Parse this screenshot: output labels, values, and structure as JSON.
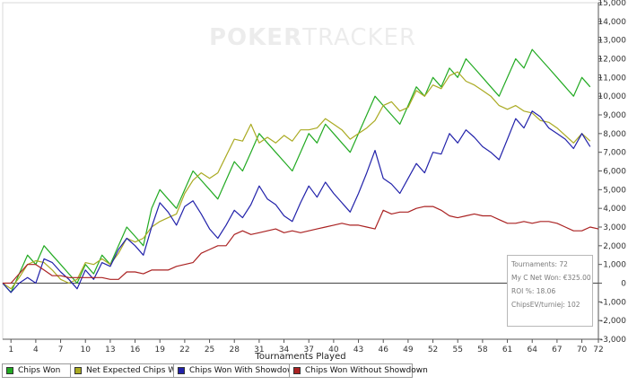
{
  "watermark": {
    "brand_bold": "POKER",
    "brand_light": "TRACKER"
  },
  "chart_data": {
    "type": "line",
    "title": "",
    "xlabel": "Tournaments Played",
    "ylabel": "",
    "xlim": [
      0,
      72
    ],
    "ylim": [
      -3000,
      15000
    ],
    "grid": false,
    "y_axis_side": "right",
    "legend_placement": "bottom",
    "xticks": [
      1,
      4,
      7,
      10,
      13,
      16,
      19,
      22,
      25,
      28,
      31,
      34,
      37,
      40,
      43,
      46,
      49,
      52,
      55,
      58,
      61,
      64,
      67,
      70,
      72
    ],
    "yticks": [
      -3000,
      -2000,
      -1000,
      0,
      1000,
      2000,
      3000,
      4000,
      5000,
      6000,
      7000,
      8000,
      9000,
      10000,
      11000,
      12000,
      13000,
      14000,
      15000
    ],
    "ytick_labels": [
      "-3,000",
      "-2,000",
      "-1,000",
      "0",
      "1,000",
      "2,000",
      "3,000",
      "4,000",
      "5,000",
      "6,000",
      "7,000",
      "8,000",
      "9,000",
      "10,000",
      "11,000",
      "12,000",
      "13,000",
      "14,000",
      "15,000"
    ],
    "x": [
      0,
      1,
      2,
      3,
      4,
      5,
      6,
      7,
      8,
      9,
      10,
      11,
      12,
      13,
      14,
      15,
      16,
      17,
      18,
      19,
      20,
      21,
      22,
      23,
      24,
      25,
      26,
      27,
      28,
      29,
      30,
      31,
      32,
      33,
      34,
      35,
      36,
      37,
      38,
      39,
      40,
      41,
      42,
      43,
      44,
      45,
      46,
      47,
      48,
      49,
      50,
      51,
      52,
      53,
      54,
      55,
      56,
      57,
      58,
      59,
      60,
      61,
      62,
      63,
      64,
      65,
      66,
      67,
      68,
      69,
      70,
      71,
      72
    ],
    "series": [
      {
        "name": "Chips Won",
        "color": "#22aa22",
        "values": [
          0,
          -500,
          500,
          1500,
          1000,
          2000,
          1500,
          1000,
          500,
          0,
          1000,
          500,
          1500,
          1000,
          2000,
          3000,
          2500,
          2000,
          4000,
          5000,
          4500,
          4000,
          5000,
          6000,
          5500,
          5000,
          4500,
          5500,
          6500,
          6000,
          7000,
          8000,
          7500,
          7000,
          6500,
          6000,
          7000,
          8000,
          7500,
          8500,
          8000,
          7500,
          7000,
          8000,
          9000,
          10000,
          9500,
          9000,
          8500,
          9500,
          10500,
          10000,
          11000,
          10500,
          11500,
          11000,
          12000,
          11500,
          11000,
          10500,
          10000,
          11000,
          12000,
          11500,
          12500,
          12000,
          11500,
          11000,
          10500,
          10000,
          11000,
          10500,
          null
        ]
      },
      {
        "name": "Net Expected Chips Won",
        "color": "#aaaa22",
        "values": [
          0,
          -300,
          300,
          1000,
          1200,
          1100,
          700,
          200,
          0,
          200,
          1100,
          1000,
          1300,
          1000,
          1600,
          2400,
          2200,
          2400,
          3000,
          3300,
          3500,
          3700,
          4800,
          5500,
          5900,
          5600,
          5900,
          6800,
          7700,
          7600,
          8500,
          7500,
          7800,
          7500,
          7900,
          7600,
          8200,
          8200,
          8300,
          8800,
          8500,
          8200,
          7700,
          8000,
          8300,
          8700,
          9500,
          9700,
          9200,
          9400,
          10300,
          10000,
          10600,
          10400,
          11100,
          11300,
          10800,
          10600,
          10300,
          10000,
          9500,
          9300,
          9500,
          9200,
          9100,
          8700,
          8600,
          8300,
          7900,
          7500,
          8000,
          7600,
          null
        ]
      },
      {
        "name": "Chips Won With Showdown",
        "color": "#2222aa",
        "values": [
          0,
          -500,
          0,
          300,
          0,
          1300,
          1100,
          600,
          200,
          -300,
          700,
          200,
          1100,
          900,
          1800,
          2400,
          2000,
          1500,
          3000,
          4300,
          3800,
          3100,
          4100,
          4400,
          3700,
          2900,
          2400,
          3100,
          3900,
          3500,
          4200,
          5200,
          4500,
          4200,
          3600,
          3300,
          4300,
          5200,
          4600,
          5400,
          4800,
          4300,
          3800,
          4800,
          5900,
          7100,
          5600,
          5300,
          4800,
          5600,
          6400,
          5900,
          7000,
          6900,
          8000,
          7500,
          8200,
          7800,
          7300,
          7000,
          6600,
          7700,
          8800,
          8300,
          9200,
          8900,
          8300,
          8000,
          7700,
          7200,
          8000,
          7300,
          null
        ]
      },
      {
        "name": "Chips Won Without Showdown",
        "color": "#aa2222",
        "values": [
          0,
          0,
          500,
          1000,
          1000,
          700,
          400,
          400,
          300,
          300,
          300,
          300,
          300,
          200,
          200,
          600,
          600,
          500,
          700,
          700,
          700,
          900,
          1000,
          1100,
          1600,
          1800,
          2000,
          2000,
          2600,
          2800,
          2600,
          2700,
          2800,
          2900,
          2700,
          2800,
          2700,
          2800,
          2900,
          3000,
          3100,
          3200,
          3100,
          3100,
          3000,
          2900,
          3900,
          3700,
          3800,
          3800,
          4000,
          4100,
          4100,
          3900,
          3600,
          3500,
          3600,
          3700,
          3600,
          3600,
          3400,
          3200,
          3200,
          3300,
          3200,
          3300,
          3300,
          3200,
          3000,
          2800,
          2800,
          3000,
          2900
        ]
      }
    ]
  },
  "stats": {
    "tournaments": "Tournaments: 72",
    "net_won": "My C Net Won: €325.00",
    "roi": "ROI %: 18.06",
    "chips_ev": "ChipsEV/turniej: 102"
  },
  "legend": [
    {
      "label": "Chips Won",
      "color": "#22aa22"
    },
    {
      "label": "Net Expected Chips Won",
      "color": "#aaaa22"
    },
    {
      "label": "Chips Won With Showdown",
      "color": "#2222aa"
    },
    {
      "label": "Chips Won Without Showdown",
      "color": "#aa2222"
    }
  ]
}
